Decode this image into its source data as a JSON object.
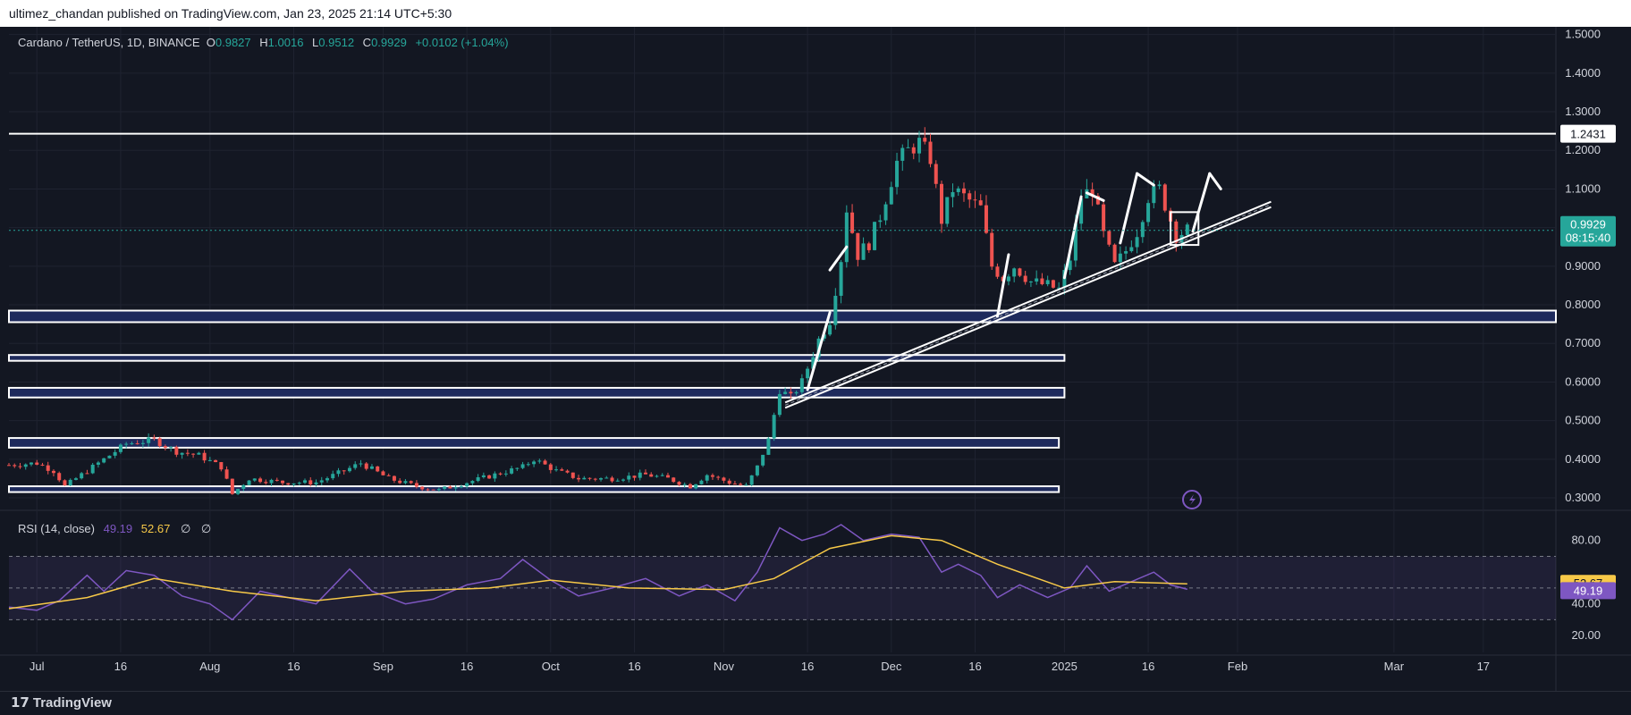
{
  "header": {
    "publish_text": "ultimez_chandan published on TradingView.com, Jan 23, 2025 21:14 UTC+5:30"
  },
  "legend": {
    "symbol": "Cardano / TetherUS, 1D, BINANCE",
    "o_label": "O",
    "o_value": "0.9827",
    "h_label": "H",
    "h_value": "1.0016",
    "l_label": "L",
    "l_value": "0.9512",
    "c_label": "C",
    "c_value": "0.9929",
    "change": "+0.0102 (+1.04%)"
  },
  "rsi_legend": {
    "label": "RSI (14, close)",
    "rsi_value": "49.19",
    "ma_value": "52.67",
    "ph1": "∅",
    "ph2": "∅"
  },
  "footer": {
    "brand": "TradingView"
  },
  "colors": {
    "up": "#26a69a",
    "down": "#ef5350",
    "background": "#131722",
    "rsi": "#7e57c2",
    "rsi_ma": "#f7c948",
    "zone_fill": "#1e2a5c"
  },
  "icons": {
    "lightning": "lightning-icon",
    "tv_logo": "tradingview-logo-icon"
  },
  "chart_data": {
    "type": "candlestick",
    "price_axis": {
      "ticks": [
        "1.5000",
        "1.4000",
        "1.3000",
        "1.2000",
        "1.1000",
        "1.0000",
        "0.9000",
        "0.8000",
        "0.7000",
        "0.6000",
        "0.5000",
        "0.4000",
        "0.3000"
      ],
      "range": [
        0.27,
        1.52
      ]
    },
    "time_axis": {
      "ticks": [
        {
          "label": "Jul",
          "date": "2024-07-01"
        },
        {
          "label": "16",
          "date": "2024-07-16"
        },
        {
          "label": "Aug",
          "date": "2024-08-01"
        },
        {
          "label": "16",
          "date": "2024-08-16"
        },
        {
          "label": "Sep",
          "date": "2024-09-01"
        },
        {
          "label": "16",
          "date": "2024-09-16"
        },
        {
          "label": "Oct",
          "date": "2024-10-01"
        },
        {
          "label": "16",
          "date": "2024-10-16"
        },
        {
          "label": "Nov",
          "date": "2024-11-01"
        },
        {
          "label": "16",
          "date": "2024-11-16"
        },
        {
          "label": "Dec",
          "date": "2024-12-01"
        },
        {
          "label": "16",
          "date": "2024-12-16"
        },
        {
          "label": "2025",
          "date": "2025-01-01"
        },
        {
          "label": "16",
          "date": "2025-01-16"
        },
        {
          "label": "Feb",
          "date": "2025-02-01"
        },
        {
          "label": "Mar",
          "date": "2025-03-01"
        },
        {
          "label": "17",
          "date": "2025-03-17"
        }
      ],
      "start": "2024-06-26",
      "end": "2025-03-30"
    },
    "price_path": [
      [
        "2024-06-26",
        0.385
      ],
      [
        "2024-07-01",
        0.39
      ],
      [
        "2024-07-04",
        0.37
      ],
      [
        "2024-07-06",
        0.33
      ],
      [
        "2024-07-10",
        0.37
      ],
      [
        "2024-07-14",
        0.41
      ],
      [
        "2024-07-17",
        0.44
      ],
      [
        "2024-07-22",
        0.45
      ],
      [
        "2024-07-26",
        0.42
      ],
      [
        "2024-07-30",
        0.41
      ],
      [
        "2024-08-03",
        0.38
      ],
      [
        "2024-08-05",
        0.31
      ],
      [
        "2024-08-08",
        0.35
      ],
      [
        "2024-08-14",
        0.34
      ],
      [
        "2024-08-20",
        0.34
      ],
      [
        "2024-08-25",
        0.37
      ],
      [
        "2024-08-28",
        0.39
      ],
      [
        "2024-09-02",
        0.35
      ],
      [
        "2024-09-07",
        0.33
      ],
      [
        "2024-09-11",
        0.32
      ],
      [
        "2024-09-16",
        0.34
      ],
      [
        "2024-09-21",
        0.36
      ],
      [
        "2024-09-26",
        0.38
      ],
      [
        "2024-09-28",
        0.4
      ],
      [
        "2024-10-02",
        0.37
      ],
      [
        "2024-10-06",
        0.35
      ],
      [
        "2024-10-12",
        0.35
      ],
      [
        "2024-10-18",
        0.36
      ],
      [
        "2024-10-22",
        0.35
      ],
      [
        "2024-10-26",
        0.33
      ],
      [
        "2024-10-29",
        0.36
      ],
      [
        "2024-11-02",
        0.34
      ],
      [
        "2024-11-05",
        0.33
      ],
      [
        "2024-11-07",
        0.38
      ],
      [
        "2024-11-09",
        0.45
      ],
      [
        "2024-11-11",
        0.58
      ],
      [
        "2024-11-13",
        0.56
      ],
      [
        "2024-11-15",
        0.6
      ],
      [
        "2024-11-18",
        0.71
      ],
      [
        "2024-11-20",
        0.76
      ],
      [
        "2024-11-22",
        0.92
      ],
      [
        "2024-11-23",
        1.05
      ],
      [
        "2024-11-25",
        0.93
      ],
      [
        "2024-11-27",
        0.96
      ],
      [
        "2024-11-29",
        1.03
      ],
      [
        "2024-12-02",
        1.17
      ],
      [
        "2024-12-04",
        1.2
      ],
      [
        "2024-12-06",
        1.22
      ],
      [
        "2024-12-08",
        1.18
      ],
      [
        "2024-12-10",
        1.02
      ],
      [
        "2024-12-12",
        1.1
      ],
      [
        "2024-12-14",
        1.08
      ],
      [
        "2024-12-17",
        1.05
      ],
      [
        "2024-12-19",
        0.9
      ],
      [
        "2024-12-21",
        0.87
      ],
      [
        "2024-12-23",
        0.9
      ],
      [
        "2024-12-26",
        0.86
      ],
      [
        "2024-12-29",
        0.85
      ],
      [
        "2024-12-31",
        0.84
      ],
      [
        "2025-01-02",
        0.92
      ],
      [
        "2025-01-04",
        1.08
      ],
      [
        "2025-01-06",
        1.1
      ],
      [
        "2025-01-08",
        0.98
      ],
      [
        "2025-01-10",
        0.9
      ],
      [
        "2025-01-12",
        0.94
      ],
      [
        "2025-01-14",
        0.99
      ],
      [
        "2025-01-16",
        1.08
      ],
      [
        "2025-01-18",
        1.1
      ],
      [
        "2025-01-20",
        1.02
      ],
      [
        "2025-01-21",
        0.98
      ],
      [
        "2025-01-23",
        0.993
      ]
    ],
    "horizontal_levels": [
      {
        "label": "1.2431",
        "price": 1.2431,
        "extends": "full"
      },
      {
        "price_low": 0.755,
        "price_high": 0.785,
        "extends": "full"
      },
      {
        "price_low": 0.655,
        "price_high": 0.67,
        "extends": "to 2025-01-01"
      },
      {
        "price_low": 0.56,
        "price_high": 0.585,
        "extends": "to 2025-01-01"
      },
      {
        "price_low": 0.43,
        "price_high": 0.455,
        "extends": "to 2024-12-31"
      },
      {
        "price_low": 0.315,
        "price_high": 0.33,
        "extends": "to 2024-12-31"
      }
    ],
    "trendline": {
      "from": [
        "2024-11-12",
        0.54
      ],
      "to": [
        "2025-02-07",
        1.06
      ]
    },
    "current_price": {
      "value": "0.9929",
      "countdown": "08:15:40"
    },
    "rsi": {
      "params": "RSI (14, close)",
      "levels": [
        70,
        50,
        30
      ],
      "ticks": [
        "80.00",
        "40.00",
        "20.00"
      ],
      "current_rsi": "49.19",
      "current_ma": "52.67",
      "path": [
        [
          "2024-06-26",
          38
        ],
        [
          "2024-07-01",
          36
        ],
        [
          "2024-07-05",
          42
        ],
        [
          "2024-07-10",
          58
        ],
        [
          "2024-07-13",
          48
        ],
        [
          "2024-07-17",
          61
        ],
        [
          "2024-07-22",
          58
        ],
        [
          "2024-07-27",
          45
        ],
        [
          "2024-08-01",
          40
        ],
        [
          "2024-08-05",
          30
        ],
        [
          "2024-08-10",
          48
        ],
        [
          "2024-08-15",
          44
        ],
        [
          "2024-08-20",
          40
        ],
        [
          "2024-08-26",
          62
        ],
        [
          "2024-08-30",
          48
        ],
        [
          "2024-09-05",
          40
        ],
        [
          "2024-09-10",
          43
        ],
        [
          "2024-09-16",
          52
        ],
        [
          "2024-09-22",
          56
        ],
        [
          "2024-09-26",
          68
        ],
        [
          "2024-10-01",
          55
        ],
        [
          "2024-10-06",
          45
        ],
        [
          "2024-10-12",
          50
        ],
        [
          "2024-10-18",
          56
        ],
        [
          "2024-10-24",
          45
        ],
        [
          "2024-10-29",
          52
        ],
        [
          "2024-11-03",
          42
        ],
        [
          "2024-11-07",
          60
        ],
        [
          "2024-11-11",
          88
        ],
        [
          "2024-11-15",
          80
        ],
        [
          "2024-11-19",
          84
        ],
        [
          "2024-11-22",
          90
        ],
        [
          "2024-11-26",
          80
        ],
        [
          "2024-12-01",
          84
        ],
        [
          "2024-12-06",
          82
        ],
        [
          "2024-12-10",
          60
        ],
        [
          "2024-12-13",
          65
        ],
        [
          "2024-12-17",
          58
        ],
        [
          "2024-12-20",
          44
        ],
        [
          "2024-12-24",
          52
        ],
        [
          "2024-12-29",
          44
        ],
        [
          "2025-01-02",
          50
        ],
        [
          "2025-01-05",
          64
        ],
        [
          "2025-01-09",
          48
        ],
        [
          "2025-01-13",
          54
        ],
        [
          "2025-01-17",
          60
        ],
        [
          "2025-01-20",
          52
        ],
        [
          "2025-01-23",
          49.19
        ]
      ],
      "ma_path": [
        [
          "2024-06-26",
          37
        ],
        [
          "2024-07-10",
          44
        ],
        [
          "2024-07-22",
          56
        ],
        [
          "2024-08-05",
          48
        ],
        [
          "2024-08-20",
          42
        ],
        [
          "2024-09-05",
          48
        ],
        [
          "2024-09-20",
          50
        ],
        [
          "2024-10-01",
          55
        ],
        [
          "2024-10-15",
          50
        ],
        [
          "2024-11-01",
          49
        ],
        [
          "2024-11-10",
          56
        ],
        [
          "2024-11-20",
          75
        ],
        [
          "2024-12-01",
          83
        ],
        [
          "2024-12-10",
          80
        ],
        [
          "2024-12-20",
          65
        ],
        [
          "2025-01-01",
          50
        ],
        [
          "2025-01-10",
          54
        ],
        [
          "2025-01-23",
          52.67
        ]
      ]
    }
  }
}
